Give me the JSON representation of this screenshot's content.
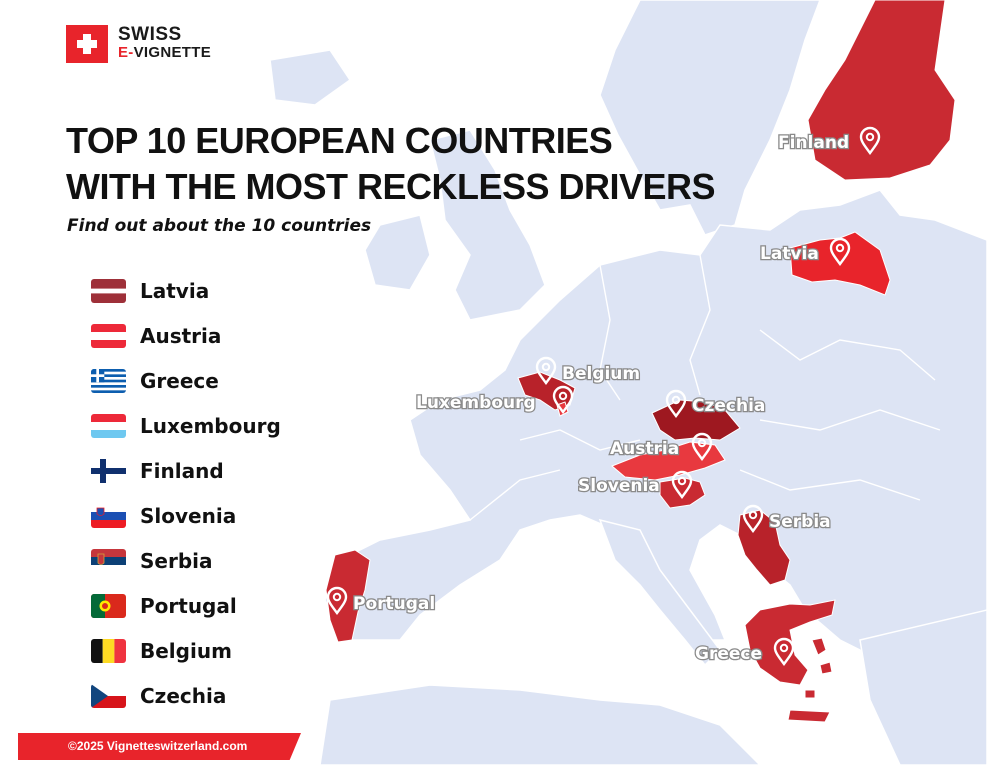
{
  "brand": {
    "line1": "SWISS",
    "line2_accent": "E-",
    "line2": "VIGNETTE"
  },
  "title": {
    "line1": "TOP 10 EUROPEAN COUNTRIES",
    "line2": "WITH THE MOST RECKLESS DRIVERS"
  },
  "subtitle": "Find out about the 10 countries",
  "legend": [
    {
      "name": "Latvia",
      "flag": "latvia"
    },
    {
      "name": "Austria",
      "flag": "austria"
    },
    {
      "name": "Greece",
      "flag": "greece"
    },
    {
      "name": "Luxembourg",
      "flag": "luxembourg"
    },
    {
      "name": "Finland",
      "flag": "finland"
    },
    {
      "name": "Slovenia",
      "flag": "slovenia"
    },
    {
      "name": "Serbia",
      "flag": "serbia"
    },
    {
      "name": "Portugal",
      "flag": "portugal"
    },
    {
      "name": "Belgium",
      "flag": "belgium"
    },
    {
      "name": "Czechia",
      "flag": "czechia"
    }
  ],
  "map_labels": {
    "finland": "Finland",
    "latvia": "Latvia",
    "belgium": "Belgium",
    "luxembourg": "Luxembourg",
    "czechia": "Czechia",
    "austria": "Austria",
    "slovenia": "Slovenia",
    "serbia": "Serbia",
    "portugal": "Portugal",
    "greece": "Greece"
  },
  "footer": "©2025 Vignetteswitzerland.com",
  "colors": {
    "accent": "#e8242b",
    "land": "#dde4f4",
    "border": "#ffffff",
    "highlight_light": "#e8393f",
    "highlight_mid": "#c92a32",
    "highlight_dark": "#9e1820"
  }
}
